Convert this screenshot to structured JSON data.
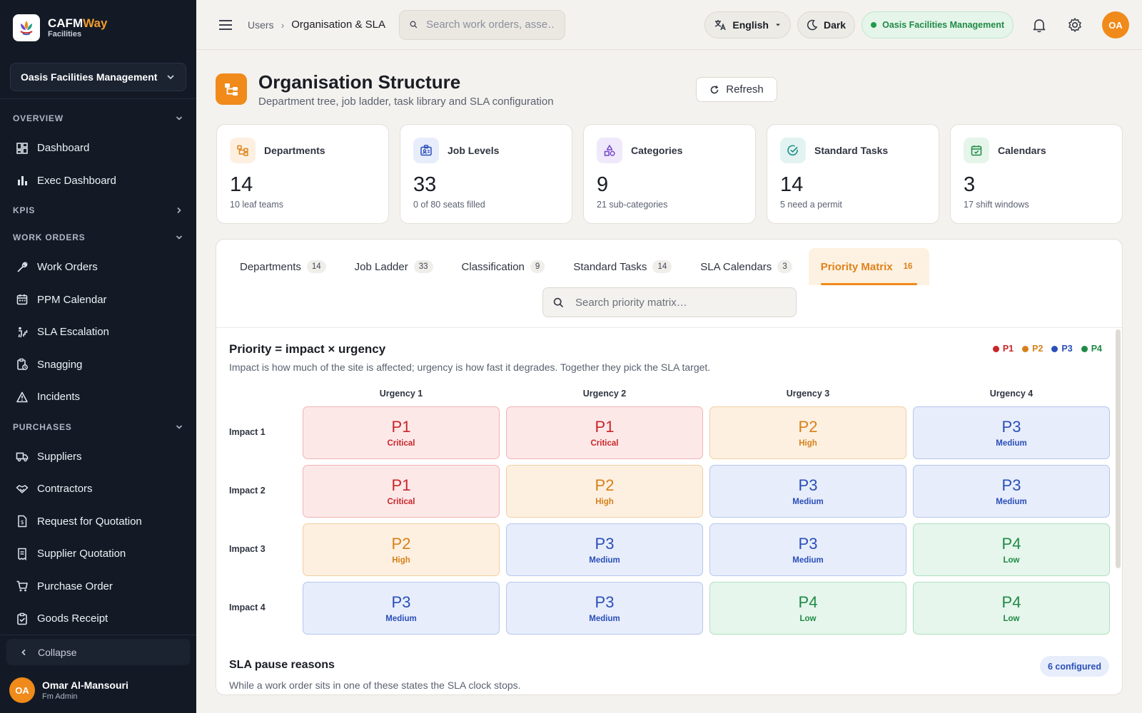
{
  "sidebar": {
    "brand": {
      "name_a": "CAFM",
      "name_b": "Way",
      "sub": "Facilities"
    },
    "org": "Oasis Facilities Management",
    "sections": {
      "overview": "OVERVIEW",
      "kpis": "KPIS",
      "work_orders": "WORK ORDERS",
      "purchases": "PURCHASES"
    },
    "items": {
      "dashboard": "Dashboard",
      "exec_dashboard": "Exec Dashboard",
      "work_orders": "Work Orders",
      "ppm_calendar": "PPM Calendar",
      "sla_escalation": "SLA Escalation",
      "snagging": "Snagging",
      "incidents": "Incidents",
      "suppliers": "Suppliers",
      "contractors": "Contractors",
      "rfq": "Request for Quotation",
      "supplier_quotation": "Supplier Quotation",
      "purchase_order": "Purchase Order",
      "goods_receipt": "Goods Receipt"
    },
    "collapse": "Collapse",
    "user": {
      "initials": "OA",
      "name": "Omar Al-Mansouri",
      "role": "Fm Admin"
    }
  },
  "header": {
    "crumb_1": "Users",
    "crumb_2": "Organisation & SLA",
    "search_placeholder": "Search work orders, asse…",
    "language": "English",
    "theme": "Dark",
    "tenant": "Oasis Facilities Management",
    "avatar": "OA"
  },
  "page": {
    "title": "Organisation Structure",
    "subtitle": "Department tree, job ladder, task library and SLA configuration",
    "refresh": "Refresh"
  },
  "stats": [
    {
      "label": "Departments",
      "value": "14",
      "hint": "10 leaf teams"
    },
    {
      "label": "Job Levels",
      "value": "33",
      "hint": "0 of 80 seats filled"
    },
    {
      "label": "Categories",
      "value": "9",
      "hint": "21 sub-categories"
    },
    {
      "label": "Standard Tasks",
      "value": "14",
      "hint": "5 need a permit"
    },
    {
      "label": "Calendars",
      "value": "3",
      "hint": "17 shift windows"
    }
  ],
  "tabs": [
    {
      "label": "Departments",
      "count": "14"
    },
    {
      "label": "Job Ladder",
      "count": "33"
    },
    {
      "label": "Classification",
      "count": "9"
    },
    {
      "label": "Standard Tasks",
      "count": "14"
    },
    {
      "label": "SLA Calendars",
      "count": "3"
    },
    {
      "label": "Priority Matrix",
      "count": "16"
    }
  ],
  "active_tab": "Priority Matrix",
  "tab_search_placeholder": "Search priority matrix…",
  "matrix": {
    "title": "Priority = impact × urgency",
    "subtitle": "Impact is how much of the site is affected; urgency is how fast it degrades. Together they pick the SLA target.",
    "legend": [
      "P1",
      "P2",
      "P3",
      "P4"
    ],
    "columns": [
      "Urgency 1",
      "Urgency 2",
      "Urgency 3",
      "Urgency 4"
    ],
    "rows": [
      {
        "label": "Impact 1",
        "cells": [
          {
            "p": "P1",
            "l": "Critical"
          },
          {
            "p": "P1",
            "l": "Critical"
          },
          {
            "p": "P2",
            "l": "High"
          },
          {
            "p": "P3",
            "l": "Medium"
          }
        ]
      },
      {
        "label": "Impact 2",
        "cells": [
          {
            "p": "P1",
            "l": "Critical"
          },
          {
            "p": "P2",
            "l": "High"
          },
          {
            "p": "P3",
            "l": "Medium"
          },
          {
            "p": "P3",
            "l": "Medium"
          }
        ]
      },
      {
        "label": "Impact 3",
        "cells": [
          {
            "p": "P2",
            "l": "High"
          },
          {
            "p": "P3",
            "l": "Medium"
          },
          {
            "p": "P3",
            "l": "Medium"
          },
          {
            "p": "P4",
            "l": "Low"
          }
        ]
      },
      {
        "label": "Impact 4",
        "cells": [
          {
            "p": "P3",
            "l": "Medium"
          },
          {
            "p": "P3",
            "l": "Medium"
          },
          {
            "p": "P4",
            "l": "Low"
          },
          {
            "p": "P4",
            "l": "Low"
          }
        ]
      }
    ]
  },
  "sla_pause": {
    "title": "SLA pause reasons",
    "subtitle": "While a work order sits in one of these states the SLA clock stops.",
    "badge": "6 configured"
  },
  "colors": {
    "accent": "#f08a1a",
    "p1": "#c8262a",
    "p2": "#d7801a",
    "p3": "#2a4fb8",
    "p4": "#1f8a45"
  }
}
